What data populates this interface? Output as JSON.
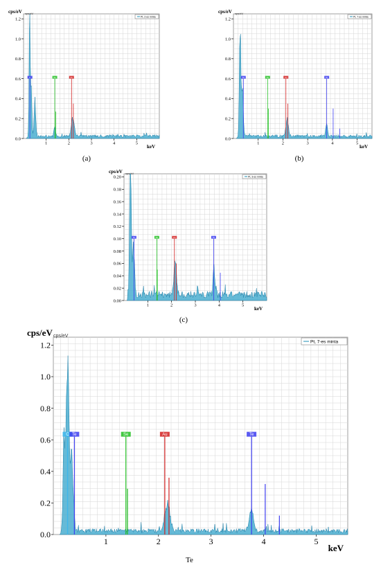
{
  "figure": {
    "captions": [
      "(a)",
      "(b)",
      "(c)"
    ],
    "bottom_label": "Te"
  },
  "chart_data": [
    {
      "id": "a",
      "type": "line",
      "ylabel": "cps/eV",
      "ylabel_sub": "cps/eV",
      "xlabel": "keV",
      "xlim": [
        0,
        6
      ],
      "ylim": [
        0,
        1.25
      ],
      "x_ticks": [
        1,
        2,
        3,
        4,
        5
      ],
      "y_ticks": [
        0.0,
        0.2,
        0.4,
        0.6,
        0.8,
        1.0,
        1.2
      ],
      "legend": "Pt, 2-es minta",
      "marker_labels": [
        "C",
        "Se",
        "Au"
      ],
      "markers": [
        {
          "label": "C",
          "x": 0.28,
          "height": 0.6,
          "color": "#3d3df0"
        },
        {
          "label": "Se",
          "x": 1.38,
          "height": 0.6,
          "color": "#22c022"
        },
        {
          "label": "Au",
          "x": 2.12,
          "height": 0.6,
          "color": "#d22020"
        }
      ],
      "peaks": [
        {
          "x": 0.27,
          "y": 1.25,
          "w": 0.03
        },
        {
          "x": 0.34,
          "y": 0.5,
          "w": 0.04
        },
        {
          "x": 0.5,
          "y": 0.35,
          "w": 0.05
        },
        {
          "x": 1.38,
          "y": 0.08,
          "w": 0.05
        },
        {
          "x": 2.15,
          "y": 0.17,
          "w": 0.07
        },
        {
          "x": 2.24,
          "y": 0.08,
          "w": 0.05
        }
      ],
      "line_peaks": [
        {
          "x": 1.42,
          "y": 0.27,
          "color": "#22c022"
        },
        {
          "x": 2.2,
          "y": 0.35,
          "color": "#d22020"
        }
      ],
      "baseline": 0.03
    },
    {
      "id": "b",
      "type": "line",
      "ylabel": "cps/eV",
      "ylabel_sub": "cps/eV",
      "xlabel": "keV",
      "xlim": [
        0,
        5.6
      ],
      "ylim": [
        0,
        1.25
      ],
      "x_ticks": [
        1,
        2,
        3,
        4,
        5
      ],
      "y_ticks": [
        0.0,
        0.2,
        0.4,
        0.6,
        0.8,
        1.0,
        1.2
      ],
      "legend": "Pt, 7-es minta",
      "marker_labels": [
        "Te",
        "Se",
        "Au",
        "Te"
      ],
      "markers": [
        {
          "label": "Te",
          "x": 0.4,
          "height": 0.6,
          "color": "#3d3df0"
        },
        {
          "label": "Se",
          "x": 1.38,
          "height": 0.6,
          "color": "#22c022"
        },
        {
          "label": "Au",
          "x": 2.12,
          "height": 0.6,
          "color": "#d22020"
        },
        {
          "label": "Te",
          "x": 3.77,
          "height": 0.6,
          "color": "#3d3df0"
        }
      ],
      "peaks": [
        {
          "x": 0.27,
          "y": 1.1,
          "w": 0.04
        },
        {
          "x": 0.36,
          "y": 0.5,
          "w": 0.05
        },
        {
          "x": 2.17,
          "y": 0.17,
          "w": 0.07
        },
        {
          "x": 3.77,
          "y": 0.13,
          "w": 0.05
        }
      ],
      "line_peaks": [
        {
          "x": 1.41,
          "y": 0.3,
          "color": "#22c022"
        },
        {
          "x": 2.2,
          "y": 0.35,
          "color": "#d22020"
        },
        {
          "x": 4.03,
          "y": 0.3,
          "color": "#3d3df0"
        },
        {
          "x": 4.3,
          "y": 0.1,
          "color": "#3d3df0"
        }
      ],
      "baseline": 0.03
    },
    {
      "id": "c",
      "type": "line",
      "ylabel": "cps/eV",
      "ylabel_sub": "cps/eV",
      "xlabel": "keV",
      "xlim": [
        0,
        6
      ],
      "ylim": [
        0,
        0.205
      ],
      "x_ticks": [
        1,
        2,
        3,
        4,
        5
      ],
      "y_ticks": [
        0.0,
        0.02,
        0.04,
        0.06,
        0.08,
        0.1,
        0.12,
        0.14,
        0.16,
        0.18,
        0.2
      ],
      "legend": "Pt, 3-es minta",
      "marker_labels": [
        "Te",
        "Se",
        "Au",
        "Te"
      ],
      "markers": [
        {
          "label": "Te",
          "x": 0.42,
          "height": 0.1,
          "color": "#3d3df0"
        },
        {
          "label": "Se",
          "x": 1.38,
          "height": 0.1,
          "color": "#22c022"
        },
        {
          "label": "Au",
          "x": 2.12,
          "height": 0.1,
          "color": "#d22020"
        },
        {
          "label": "Te",
          "x": 3.77,
          "height": 0.1,
          "color": "#3d3df0"
        }
      ],
      "peaks": [
        {
          "x": 0.27,
          "y": 0.205,
          "w": 0.05
        },
        {
          "x": 0.4,
          "y": 0.08,
          "w": 0.06
        },
        {
          "x": 2.15,
          "y": 0.055,
          "w": 0.08
        },
        {
          "x": 3.78,
          "y": 0.04,
          "w": 0.05
        }
      ],
      "line_peaks": [
        {
          "x": 1.4,
          "y": 0.05,
          "color": "#22c022"
        },
        {
          "x": 2.2,
          "y": 0.06,
          "color": "#d22020"
        },
        {
          "x": 4.05,
          "y": 0.045,
          "color": "#3d3df0"
        }
      ],
      "baseline": 0.012
    },
    {
      "id": "d",
      "type": "line",
      "ylabel": "cps/eV",
      "ylabel_sub": "cps/eV",
      "xlabel": "keV",
      "xlim": [
        0,
        5.6
      ],
      "ylim": [
        0,
        1.25
      ],
      "x_ticks": [
        1,
        2,
        3,
        4,
        5
      ],
      "y_ticks": [
        0.0,
        0.2,
        0.4,
        0.6,
        0.8,
        1.0,
        1.2
      ],
      "legend": "Pt, 7-es minta",
      "marker_labels": [
        "C",
        "Te",
        "Se",
        "Au",
        "Te"
      ],
      "markers": [
        {
          "label": "C",
          "x": 0.27,
          "height": 0.62,
          "color": "#3db7ec"
        },
        {
          "label": "Te",
          "x": 0.4,
          "height": 0.62,
          "color": "#3d3df0"
        },
        {
          "label": "Se",
          "x": 1.38,
          "height": 0.62,
          "color": "#22c022"
        },
        {
          "label": "Au",
          "x": 2.12,
          "height": 0.62,
          "color": "#d22020"
        },
        {
          "label": "Te",
          "x": 3.77,
          "height": 0.62,
          "color": "#3d3df0"
        }
      ],
      "peaks": [
        {
          "x": 0.2,
          "y": 0.55,
          "w": 0.03
        },
        {
          "x": 0.27,
          "y": 1.12,
          "w": 0.035
        },
        {
          "x": 0.35,
          "y": 0.5,
          "w": 0.04
        },
        {
          "x": 2.17,
          "y": 0.17,
          "w": 0.07
        },
        {
          "x": 3.77,
          "y": 0.13,
          "w": 0.05
        }
      ],
      "line_peaks": [
        {
          "x": 1.41,
          "y": 0.29,
          "color": "#22c022"
        },
        {
          "x": 2.2,
          "y": 0.36,
          "color": "#d22020"
        },
        {
          "x": 4.03,
          "y": 0.32,
          "color": "#3d3df0"
        },
        {
          "x": 4.3,
          "y": 0.12,
          "color": "#3d3df0"
        }
      ],
      "baseline": 0.03
    }
  ]
}
